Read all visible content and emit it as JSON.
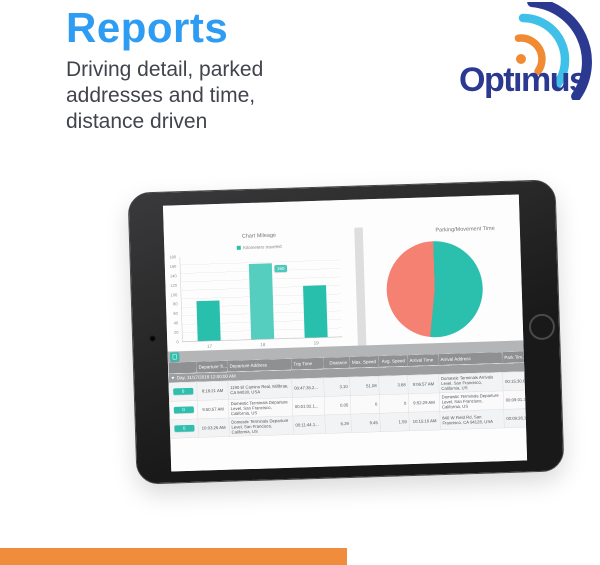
{
  "header": {
    "title": "Reports",
    "subtitle_lines": [
      "Driving detail, parked",
      "addresses and time,",
      "distance driven"
    ]
  },
  "logo": {
    "name": "Optimus",
    "text_pre": "Opt",
    "text_i": "ı",
    "text_post": "mus"
  },
  "colors": {
    "accent_blue": "#2d9cf2",
    "brand_navy": "#2b3990",
    "brand_cyan": "#3fc0e8",
    "brand_orange": "#f08d3c",
    "teal": "#29bfad",
    "coral": "#f48171",
    "table_header_gray": "#8f9092"
  },
  "table": {
    "columns": [
      "",
      "Departure Ti...",
      "Departure Address",
      "Trip Time",
      "Distance",
      "Max. Speed",
      "Avg. Speed",
      "Arrival Time",
      "Arrival Address",
      "Park Tim..."
    ],
    "group_row": "Day, 11/17/2018 12:00:00 AM",
    "rows": [
      {
        "badge": "0",
        "departure_time": "8:18:21 AM",
        "departure_address": "1190 El Camino Real, Millbrae, CA 94030, USA",
        "trip_time": "00:47:36.2...",
        "distance": "3.10",
        "max_speed": "51.08",
        "avg_speed": "3.68",
        "arrival_time": "9:06:57 AM",
        "arrival_address": "Domestic Terminals Arrivals Level, San Francisco, California, US",
        "park_time": "00:15:30.8..."
      },
      {
        "badge": "0",
        "departure_time": "9:50:57 AM",
        "departure_address": "Domestic Terminals Departure Level, San Francisco, California, US",
        "trip_time": "00:01:02.1...",
        "distance": "0.05",
        "max_speed": "0",
        "avg_speed": "0",
        "arrival_time": "9:52:29 AM",
        "arrival_address": "Domestic Terminals Departure Level, San Francisco, California, US",
        "park_time": "00:09:01.3..."
      },
      {
        "badge": "0",
        "departure_time": "10:03:26 AM",
        "departure_address": "Domestic Terminals Departure Level, San Francisco, California, US",
        "trip_time": "00:11:44.1...",
        "distance": "6.29",
        "max_speed": "9.45",
        "avg_speed": "1.59",
        "arrival_time": "10:15:10 AM",
        "arrival_address": "840 W Field Rd, San Francisco, CA 94128, USA",
        "park_time": "00:09:26.1..."
      }
    ]
  },
  "chart_data": [
    {
      "type": "bar",
      "title": "Chart Mileage",
      "legend": [
        "Kilometers traveled"
      ],
      "categories": [
        "17",
        "18",
        "19"
      ],
      "values": [
        85,
        160,
        110
      ],
      "xlabel": "",
      "ylabel": "",
      "ylim": [
        0,
        180
      ],
      "yticks": [
        0,
        20,
        40,
        60,
        80,
        100,
        120,
        140,
        160,
        180
      ],
      "grid": true,
      "bar_color": "#29bfad",
      "highlight_index": 1,
      "highlight_color": "#55cdbf",
      "tooltip": "160",
      "legend_position": "top"
    },
    {
      "type": "pie",
      "title": "Parking/Movement Time",
      "slices": [
        {
          "label": "teal",
          "value": 52,
          "color": "#2bbfad"
        },
        {
          "label": "coral",
          "value": 48,
          "color": "#f48171"
        }
      ],
      "legend_position": "none"
    }
  ]
}
